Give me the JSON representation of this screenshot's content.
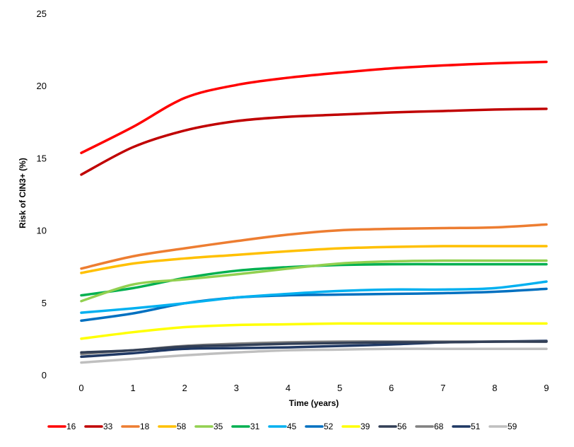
{
  "chart_data": {
    "type": "line",
    "xlabel": "Time (years)",
    "ylabel": "Risk of CIN3+ (%)",
    "x": [
      0,
      1,
      2,
      3,
      4,
      5,
      6,
      7,
      8,
      9
    ],
    "xlim": [
      0,
      9
    ],
    "ylim": [
      0,
      25
    ],
    "yticks": [
      0,
      5,
      10,
      15,
      20,
      25
    ],
    "grid": false,
    "legend_position": "bottom",
    "series": [
      {
        "name": "16",
        "color": "#ff0000",
        "values": [
          15.4,
          17.2,
          19.2,
          20.1,
          20.6,
          20.95,
          21.25,
          21.45,
          21.6,
          21.7
        ]
      },
      {
        "name": "33",
        "color": "#c00000",
        "values": [
          13.9,
          15.8,
          16.95,
          17.6,
          17.9,
          18.05,
          18.2,
          18.3,
          18.4,
          18.45
        ]
      },
      {
        "name": "18",
        "color": "#ed7d31",
        "values": [
          7.4,
          8.25,
          8.8,
          9.3,
          9.75,
          10.05,
          10.15,
          10.2,
          10.25,
          10.45
        ]
      },
      {
        "name": "58",
        "color": "#ffc000",
        "values": [
          7.1,
          7.75,
          8.1,
          8.35,
          8.6,
          8.8,
          8.9,
          8.95,
          8.95,
          8.95
        ]
      },
      {
        "name": "35",
        "color": "#92d050",
        "values": [
          5.15,
          6.3,
          6.65,
          7.0,
          7.4,
          7.75,
          7.9,
          7.95,
          7.95,
          7.95
        ]
      },
      {
        "name": "31",
        "color": "#00b050",
        "values": [
          5.55,
          6.05,
          6.75,
          7.25,
          7.5,
          7.65,
          7.7,
          7.7,
          7.7,
          7.7
        ]
      },
      {
        "name": "45",
        "color": "#00b0f0",
        "values": [
          4.35,
          4.65,
          5.0,
          5.4,
          5.65,
          5.85,
          5.95,
          5.95,
          6.05,
          6.5
        ]
      },
      {
        "name": "52",
        "color": "#0070c0",
        "values": [
          3.8,
          4.3,
          5.0,
          5.4,
          5.55,
          5.6,
          5.65,
          5.7,
          5.8,
          6.0
        ]
      },
      {
        "name": "39",
        "color": "#ffff00",
        "values": [
          2.55,
          3.0,
          3.35,
          3.5,
          3.55,
          3.6,
          3.6,
          3.6,
          3.6,
          3.6
        ]
      },
      {
        "name": "56",
        "color": "#323f56",
        "values": [
          1.6,
          1.75,
          2.0,
          2.1,
          2.2,
          2.25,
          2.3,
          2.3,
          2.35,
          2.35
        ]
      },
      {
        "name": "68",
        "color": "#808080",
        "values": [
          1.5,
          1.75,
          2.05,
          2.2,
          2.3,
          2.35,
          2.35,
          2.35,
          2.35,
          2.35
        ]
      },
      {
        "name": "51",
        "color": "#1f3864",
        "values": [
          1.3,
          1.55,
          1.85,
          1.9,
          1.95,
          2.05,
          2.15,
          2.3,
          2.35,
          2.4
        ]
      },
      {
        "name": "59",
        "color": "#bfbfbf",
        "values": [
          0.9,
          1.15,
          1.4,
          1.6,
          1.75,
          1.8,
          1.85,
          1.85,
          1.85,
          1.85
        ]
      }
    ]
  }
}
